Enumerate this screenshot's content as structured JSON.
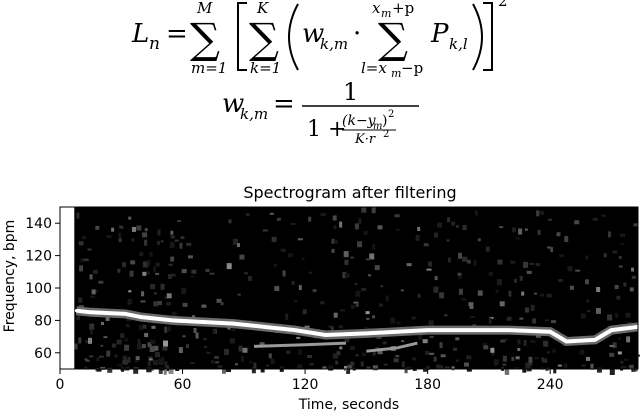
{
  "formula": {
    "line1": {
      "lhs": "L",
      "lhs_sub": "n",
      "eq": "=",
      "outer_sum_top": "M",
      "outer_sum_bottom": "m=1",
      "inner_sum_top": "K",
      "inner_sum_bottom": "k=1",
      "weight": "w",
      "weight_sub": "k,m",
      "dot": "·",
      "third_sum_top": "x",
      "third_sum_top_sub": "m",
      "third_sum_top_tail": "+p",
      "third_sum_bottom": "l=x",
      "third_sum_bottom_sub": "m",
      "third_sum_bottom_tail": "−p",
      "term": "P",
      "term_sub": "k,l",
      "power": "2"
    },
    "line2": {
      "lhs": "w",
      "lhs_sub": "k,m",
      "eq": "=",
      "numerator": "1",
      "denom_one": "1 +",
      "inner_numerator": "(k−y",
      "inner_numerator_sub": "m",
      "inner_numerator_close": ")",
      "inner_numerator_power": "2",
      "inner_denominator": "K·r",
      "inner_denominator_power": "2"
    }
  },
  "chart_data": {
    "type": "heatmap",
    "title": "Spectrogram after filtering",
    "xlabel": "Time, seconds",
    "ylabel": "Frequency, bpm",
    "xlim": [
      0,
      283
    ],
    "ylim": [
      50,
      150
    ],
    "xticks": [
      "0",
      "60",
      "120",
      "180",
      "240"
    ],
    "yticks": [
      "60",
      "80",
      "100",
      "120",
      "140"
    ],
    "colormap": "gray",
    "background": "#000000",
    "blank_region_seconds": [
      0,
      7
    ],
    "ridge": {
      "name": "",
      "points": [
        {
          "t": 8,
          "bpm": 86
        },
        {
          "t": 15,
          "bpm": 85
        },
        {
          "t": 32,
          "bpm": 84
        },
        {
          "t": 40,
          "bpm": 82
        },
        {
          "t": 55,
          "bpm": 80
        },
        {
          "t": 70,
          "bpm": 79
        },
        {
          "t": 85,
          "bpm": 78
        },
        {
          "t": 100,
          "bpm": 76
        },
        {
          "t": 115,
          "bpm": 74
        },
        {
          "t": 130,
          "bpm": 71
        },
        {
          "t": 150,
          "bpm": 72
        },
        {
          "t": 165,
          "bpm": 73
        },
        {
          "t": 180,
          "bpm": 74
        },
        {
          "t": 200,
          "bpm": 74
        },
        {
          "t": 220,
          "bpm": 74
        },
        {
          "t": 240,
          "bpm": 73
        },
        {
          "t": 248,
          "bpm": 67
        },
        {
          "t": 262,
          "bpm": 68
        },
        {
          "t": 270,
          "bpm": 74
        },
        {
          "t": 283,
          "bpm": 76
        }
      ]
    },
    "secondary_ridges": [
      {
        "points": [
          {
            "t": 95,
            "bpm": 64
          },
          {
            "t": 120,
            "bpm": 65
          },
          {
            "t": 140,
            "bpm": 66
          }
        ]
      },
      {
        "points": [
          {
            "t": 150,
            "bpm": 61
          },
          {
            "t": 165,
            "bpm": 63
          },
          {
            "t": 175,
            "bpm": 66
          }
        ]
      }
    ]
  }
}
